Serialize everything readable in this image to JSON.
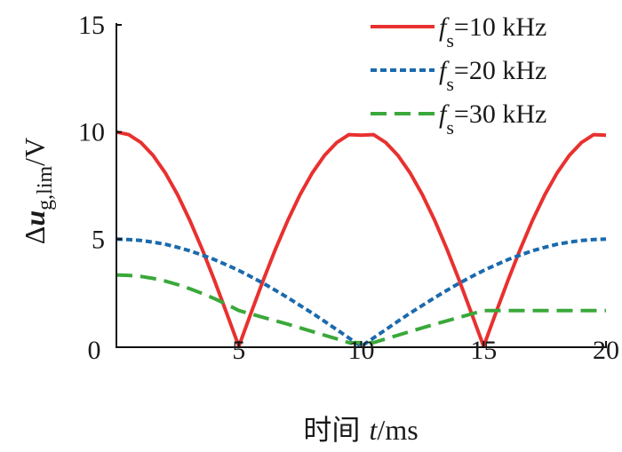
{
  "chart_data": {
    "type": "line",
    "title": "",
    "xlabel": {
      "prefix": "时间 ",
      "var": "t",
      "suffix": "/ms"
    },
    "ylabel": {
      "prefix": "Δ",
      "var": "u",
      "sub": "g,lim",
      "suffix": "/V"
    },
    "xlim": [
      0,
      20
    ],
    "ylim": [
      0,
      15
    ],
    "xticks": [
      5,
      10,
      15,
      20
    ],
    "yticks": [
      5,
      10,
      15
    ],
    "origin_label": "0",
    "grid": false,
    "legend_position": "top-right",
    "x": [
      0,
      0.5,
      1,
      1.5,
      2,
      2.5,
      3,
      3.5,
      4,
      4.5,
      5,
      5.5,
      6,
      6.5,
      7,
      7.5,
      8,
      8.5,
      9,
      9.5,
      10,
      10.5,
      11,
      11.5,
      12,
      12.5,
      13,
      13.5,
      14,
      14.5,
      15,
      15.5,
      16,
      16.5,
      17,
      17.5,
      18,
      18.5,
      19,
      19.5,
      20
    ],
    "series": [
      {
        "name": {
          "var": "f",
          "sub": "s",
          "rest": "=10 kHz"
        },
        "color": "#e8312f",
        "style": "solid",
        "values": [
          10,
          9.88,
          9.51,
          8.91,
          8.09,
          7.07,
          5.88,
          4.54,
          3.09,
          1.56,
          0,
          1.56,
          3.09,
          4.54,
          5.88,
          7.07,
          8.09,
          8.91,
          9.51,
          9.88,
          9.85,
          9.88,
          9.51,
          8.91,
          8.09,
          7.07,
          5.88,
          4.54,
          3.09,
          1.56,
          0,
          1.56,
          3.09,
          4.54,
          5.88,
          7.07,
          8.09,
          8.91,
          9.51,
          9.88,
          9.85
        ]
      },
      {
        "name": {
          "var": "f",
          "sub": "s",
          "rest": "=20 kHz"
        },
        "color": "#1a6aad",
        "style": "dotted",
        "values": [
          5,
          4.98,
          4.94,
          4.86,
          4.76,
          4.62,
          4.46,
          4.26,
          4.05,
          3.8,
          3.54,
          3.25,
          2.94,
          2.61,
          2.27,
          1.91,
          1.55,
          1.17,
          0.78,
          0.39,
          0,
          0.39,
          0.78,
          1.17,
          1.55,
          1.91,
          2.27,
          2.61,
          2.94,
          3.25,
          3.54,
          3.8,
          4.05,
          4.26,
          4.46,
          4.62,
          4.76,
          4.86,
          4.94,
          4.98,
          5
        ]
      },
      {
        "name": {
          "var": "f",
          "sub": "s",
          "rest": "=30 kHz"
        },
        "color": "#3aa83a",
        "style": "dashed",
        "values": [
          3.33,
          3.31,
          3.26,
          3.17,
          3.04,
          2.88,
          2.69,
          2.47,
          2.23,
          1.96,
          1.67,
          1.51,
          1.35,
          1.19,
          1.03,
          0.86,
          0.69,
          0.52,
          0.35,
          0.17,
          0.17,
          0.17,
          0.35,
          0.52,
          0.69,
          0.86,
          1.03,
          1.19,
          1.35,
          1.51,
          1.67,
          1.67,
          1.67,
          1.67,
          1.67,
          1.67,
          1.67,
          1.67,
          1.67,
          1.67,
          1.67
        ]
      }
    ]
  }
}
